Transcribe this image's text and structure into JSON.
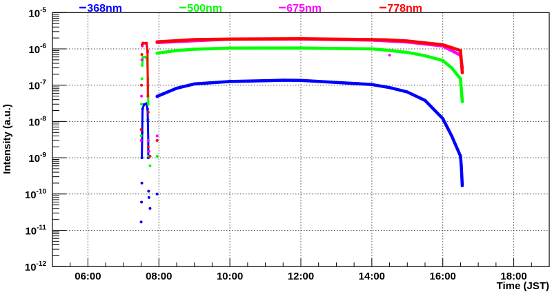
{
  "chart_data": {
    "type": "scatter",
    "title": "",
    "xlabel": "Time (JST)",
    "ylabel": "Intensity (a.u.)",
    "xlim": [
      5,
      19
    ],
    "ylim": [
      1e-12,
      1e-05
    ],
    "yscale": "log",
    "grid": true,
    "legend_position": "top",
    "x_ticks": [
      {
        "value": 6,
        "label": "06:00"
      },
      {
        "value": 8,
        "label": "08:00"
      },
      {
        "value": 10,
        "label": "10:00"
      },
      {
        "value": 12,
        "label": "12:00"
      },
      {
        "value": 14,
        "label": "14:00"
      },
      {
        "value": 16,
        "label": "16:00"
      },
      {
        "value": 18,
        "label": "18:00"
      }
    ],
    "y_ticks": [
      {
        "exp": -5,
        "base": "10",
        "sup": "-5"
      },
      {
        "exp": -6,
        "base": "10",
        "sup": "-6"
      },
      {
        "exp": -7,
        "base": "10",
        "sup": "-7"
      },
      {
        "exp": -8,
        "base": "10",
        "sup": "-8"
      },
      {
        "exp": -9,
        "base": "10",
        "sup": "-9"
      },
      {
        "exp": -10,
        "base": "10",
        "sup": "-10"
      },
      {
        "exp": -11,
        "base": "10",
        "sup": "-11"
      },
      {
        "exp": -12,
        "base": "10",
        "sup": "-12"
      }
    ],
    "series": [
      {
        "name": "368nm",
        "color": "#0000ff",
        "early": [
          [
            7.5,
            1.7e-11
          ],
          [
            7.51,
            6e-11
          ],
          [
            7.52,
            2e-10
          ],
          [
            7.52,
            1e-09
          ],
          [
            7.53,
            5e-09
          ],
          [
            7.54,
            2.2e-08
          ],
          [
            7.58,
            2.9e-08
          ],
          [
            7.65,
            3.1e-08
          ],
          [
            7.68,
            2.2e-08
          ],
          [
            7.69,
            1.1e-08
          ],
          [
            7.7,
            3e-09
          ],
          [
            7.7,
            1e-09
          ],
          [
            7.71,
            1.2e-10
          ],
          [
            7.72,
            8e-11
          ],
          [
            7.75,
            4e-11
          ]
        ],
        "main": [
          [
            7.95,
            4.9e-08
          ],
          [
            8.5,
            8.2e-08
          ],
          [
            9,
            1.08e-07
          ],
          [
            10,
            1.26e-07
          ],
          [
            11,
            1.33e-07
          ],
          [
            11.5,
            1.37e-07
          ],
          [
            12,
            1.35e-07
          ],
          [
            13,
            1.19e-07
          ],
          [
            14,
            1.04e-07
          ],
          [
            14.5,
            8.6e-08
          ],
          [
            15,
            6.5e-08
          ],
          [
            15.5,
            3.8e-08
          ],
          [
            16,
            1.2e-08
          ],
          [
            16.25,
            4e-09
          ],
          [
            16.5,
            1.1e-09
          ],
          [
            16.52,
            6e-10
          ],
          [
            16.55,
            1.7e-10
          ]
        ],
        "extra": [
          [
            7.95,
            1e-10
          ]
        ]
      },
      {
        "name": "500nm",
        "color": "#00ff00",
        "early": [
          [
            7.5,
            4e-09
          ],
          [
            7.51,
            3e-08
          ],
          [
            7.52,
            1.5e-07
          ],
          [
            7.53,
            3.5e-07
          ],
          [
            7.55,
            5.9e-07
          ],
          [
            7.62,
            6e-07
          ],
          [
            7.67,
            5e-07
          ],
          [
            7.69,
            1.5e-07
          ],
          [
            7.7,
            3e-08
          ],
          [
            7.7,
            3e-09
          ],
          [
            7.71,
            1.1e-09
          ],
          [
            7.75,
            6e-10
          ]
        ],
        "main": [
          [
            7.95,
            7.6e-07
          ],
          [
            8.5,
            9e-07
          ],
          [
            9,
            9.8e-07
          ],
          [
            10,
            1.05e-06
          ],
          [
            12,
            1.06e-06
          ],
          [
            14,
            1e-06
          ],
          [
            14.42,
            9.2e-07
          ],
          [
            15,
            8e-07
          ],
          [
            15.5,
            6.5e-07
          ],
          [
            16,
            4.8e-07
          ],
          [
            16.25,
            3e-07
          ],
          [
            16.5,
            1.5e-07
          ],
          [
            16.55,
            3.5e-08
          ]
        ],
        "extra": [
          [
            7.95,
            1.1e-09
          ]
        ]
      },
      {
        "name": "675nm",
        "color": "#ff00ff",
        "early": [
          [
            7.5,
            3e-09
          ],
          [
            7.51,
            5e-08
          ],
          [
            7.52,
            5e-07
          ],
          [
            7.53,
            1.2e-06
          ],
          [
            7.55,
            1.4e-06
          ],
          [
            7.65,
            1.4e-06
          ],
          [
            7.68,
            8e-07
          ],
          [
            7.69,
            1e-07
          ],
          [
            7.7,
            3e-09
          ],
          [
            7.72,
            1.5e-09
          ]
        ],
        "main": [
          [
            7.95,
            1.5e-06
          ],
          [
            10,
            1.85e-06
          ],
          [
            12,
            1.88e-06
          ],
          [
            14,
            1.75e-06
          ],
          [
            15,
            1.55e-06
          ],
          [
            16,
            1.2e-06
          ],
          [
            16.5,
            6.7e-07
          ],
          [
            16.55,
            3e-07
          ]
        ],
        "extra": [
          [
            14.5,
            6.7e-07
          ],
          [
            7.95,
            4e-09
          ]
        ]
      },
      {
        "name": "778nm",
        "color": "#ff0000",
        "early": [
          [
            7.5,
            6e-09
          ],
          [
            7.51,
            1e-07
          ],
          [
            7.52,
            7e-07
          ],
          [
            7.53,
            1.3e-06
          ],
          [
            7.55,
            1.45e-06
          ],
          [
            7.65,
            1.45e-06
          ],
          [
            7.68,
            9e-07
          ],
          [
            7.69,
            5e-08
          ],
          [
            7.7,
            1.8e-08
          ],
          [
            7.7,
            2e-09
          ],
          [
            7.75,
            1.1e-09
          ]
        ],
        "main": [
          [
            7.95,
            1.57e-06
          ],
          [
            9,
            1.8e-06
          ],
          [
            10,
            1.87e-06
          ],
          [
            12,
            1.9e-06
          ],
          [
            14,
            1.8e-06
          ],
          [
            14.42,
            1.77e-06
          ],
          [
            15,
            1.65e-06
          ],
          [
            16,
            1.3e-06
          ],
          [
            16.5,
            9e-07
          ],
          [
            16.55,
            2.2e-07
          ]
        ],
        "extra": [
          [
            7.95,
            3e-09
          ]
        ]
      }
    ]
  }
}
